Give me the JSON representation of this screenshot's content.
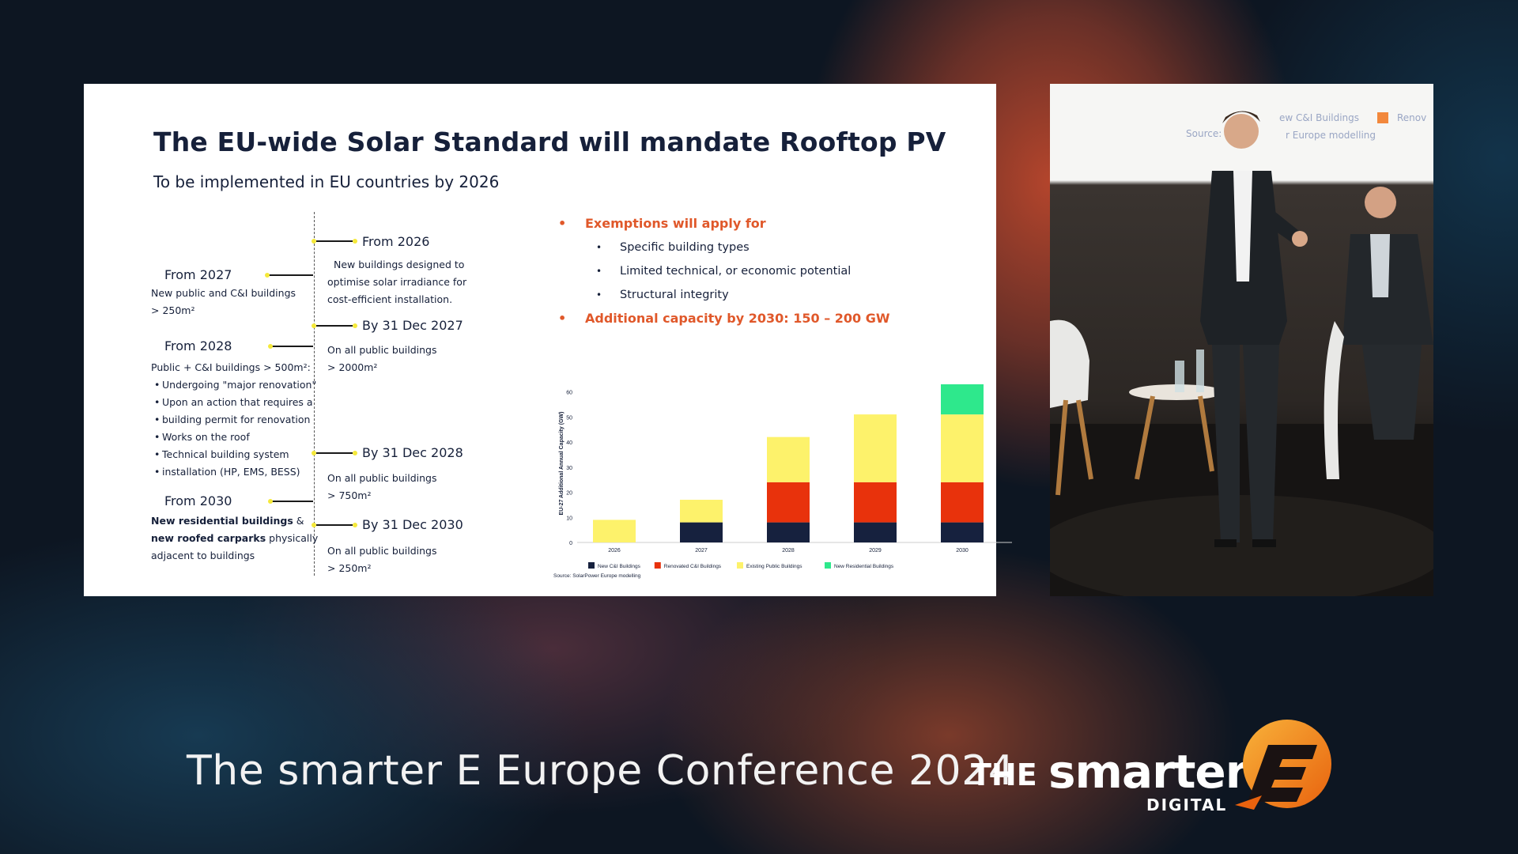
{
  "slide": {
    "title": "The EU-wide Solar Standard will mandate Rooftop PV",
    "subtitle": "To be implemented in EU countries by 2026",
    "timeline_left": [
      {
        "heading": "From 2027",
        "text1": "New public and C&I buildings",
        "text2": "> 250m²"
      },
      {
        "heading": "From 2028",
        "text1": "Public + C&I buildings > 500m²:",
        "bullets": [
          "Undergoing \"major renovation\"",
          "Upon an action that requires a",
          "building permit for renovation",
          "Works on the roof",
          "Technical building system",
          "installation (HP, EMS, BESS)"
        ]
      },
      {
        "heading": "From 2030",
        "text_bold1": "New residential buildings",
        "text_amp": " &",
        "text_bold2": "new roofed carparks",
        "text_rest": " physically",
        "text3": "adjacent to buildings"
      }
    ],
    "timeline_right": [
      {
        "heading": "From 2026",
        "lines": [
          "New buildings designed to",
          "optimise solar irradiance for",
          "cost-efficient installation."
        ]
      },
      {
        "heading": "By 31 Dec 2027",
        "lines": [
          "On all public buildings",
          "> 2000m²"
        ]
      },
      {
        "heading": "By 31 Dec 2028",
        "lines": [
          "On all public buildings",
          "> 750m²"
        ]
      },
      {
        "heading": "By 31 Dec 2030",
        "lines": [
          "On all public buildings",
          "> 250m²"
        ]
      }
    ],
    "exemptions": {
      "heading": "Exemptions will apply for",
      "items": [
        "Specific building types",
        "Limited technical, or economic potential",
        "Structural integrity"
      ],
      "additional": "Additional capacity by 2030: 150 – 200 GW"
    }
  },
  "chart_data": {
    "type": "bar",
    "stacked": true,
    "categories": [
      "2026",
      "2027",
      "2028",
      "2029",
      "2030"
    ],
    "series": [
      {
        "name": "New C&I Buildings",
        "color": "#16213e",
        "values": [
          0,
          8,
          8,
          8,
          8
        ]
      },
      {
        "name": "Renovated C&I Buildings",
        "color": "#e8320c",
        "values": [
          0,
          0,
          16,
          16,
          16
        ]
      },
      {
        "name": "Existing Public Buildings",
        "color": "#fdf26b",
        "values": [
          9,
          9,
          18,
          27,
          27
        ]
      },
      {
        "name": "New Residential Buildings",
        "color": "#2ee88c",
        "values": [
          0,
          0,
          0,
          0,
          12
        ]
      }
    ],
    "ylabel": "EU-27 Additional Annual Capacity (GW)",
    "yticks": [
      0,
      10,
      20,
      30,
      40,
      50,
      60
    ],
    "ylim": [
      0,
      63
    ],
    "legend_position": "bottom",
    "source": "Source: SolarPower Europe modelling"
  },
  "video": {
    "screen_legend_1": "ew C&I Buildings",
    "screen_legend_2": "Renov",
    "screen_source": "Source: S",
    "screen_source_2": "r Europe modelling"
  },
  "footer": {
    "title": "The smarter E Europe Conference 2024",
    "logo_the": "THE",
    "logo_smarter": "smarter",
    "logo_digital": "DIGITAL"
  },
  "colors": {
    "accent": "#e0582a",
    "timeline_dot": "#f5e93a",
    "logo_orange": "#f28a1c"
  }
}
